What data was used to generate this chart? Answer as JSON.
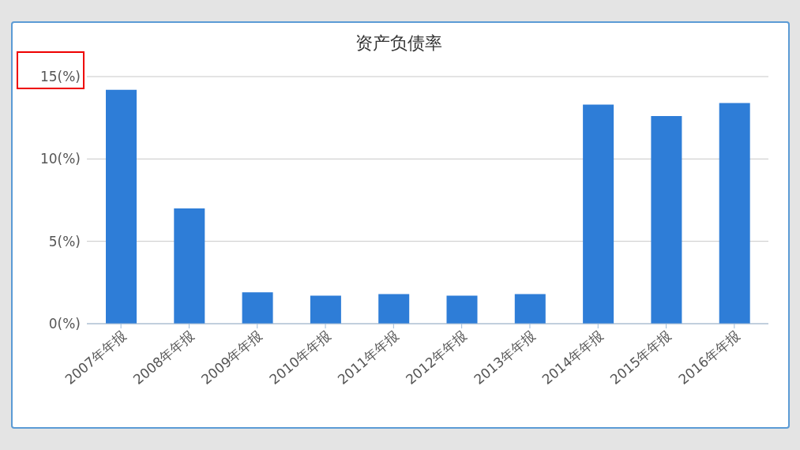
{
  "chart_data": {
    "type": "bar",
    "title": "资产负债率",
    "categories": [
      "2007年年报",
      "2008年年报",
      "2009年年报",
      "2010年年报",
      "2011年年报",
      "2012年年报",
      "2013年年报",
      "2014年年报",
      "2015年年报",
      "2016年年报"
    ],
    "values": [
      14.2,
      7.0,
      1.9,
      1.7,
      1.8,
      1.7,
      1.8,
      13.3,
      12.6,
      13.4
    ],
    "color": "#2e7dd7",
    "ylim": [
      0,
      15
    ],
    "yticks": [
      {
        "value": 0,
        "label": "0(%)"
      },
      {
        "value": 5,
        "label": "5(%)"
      },
      {
        "value": 10,
        "label": "10(%)"
      },
      {
        "value": 15,
        "label": "15(%)"
      }
    ],
    "grid": "y"
  }
}
